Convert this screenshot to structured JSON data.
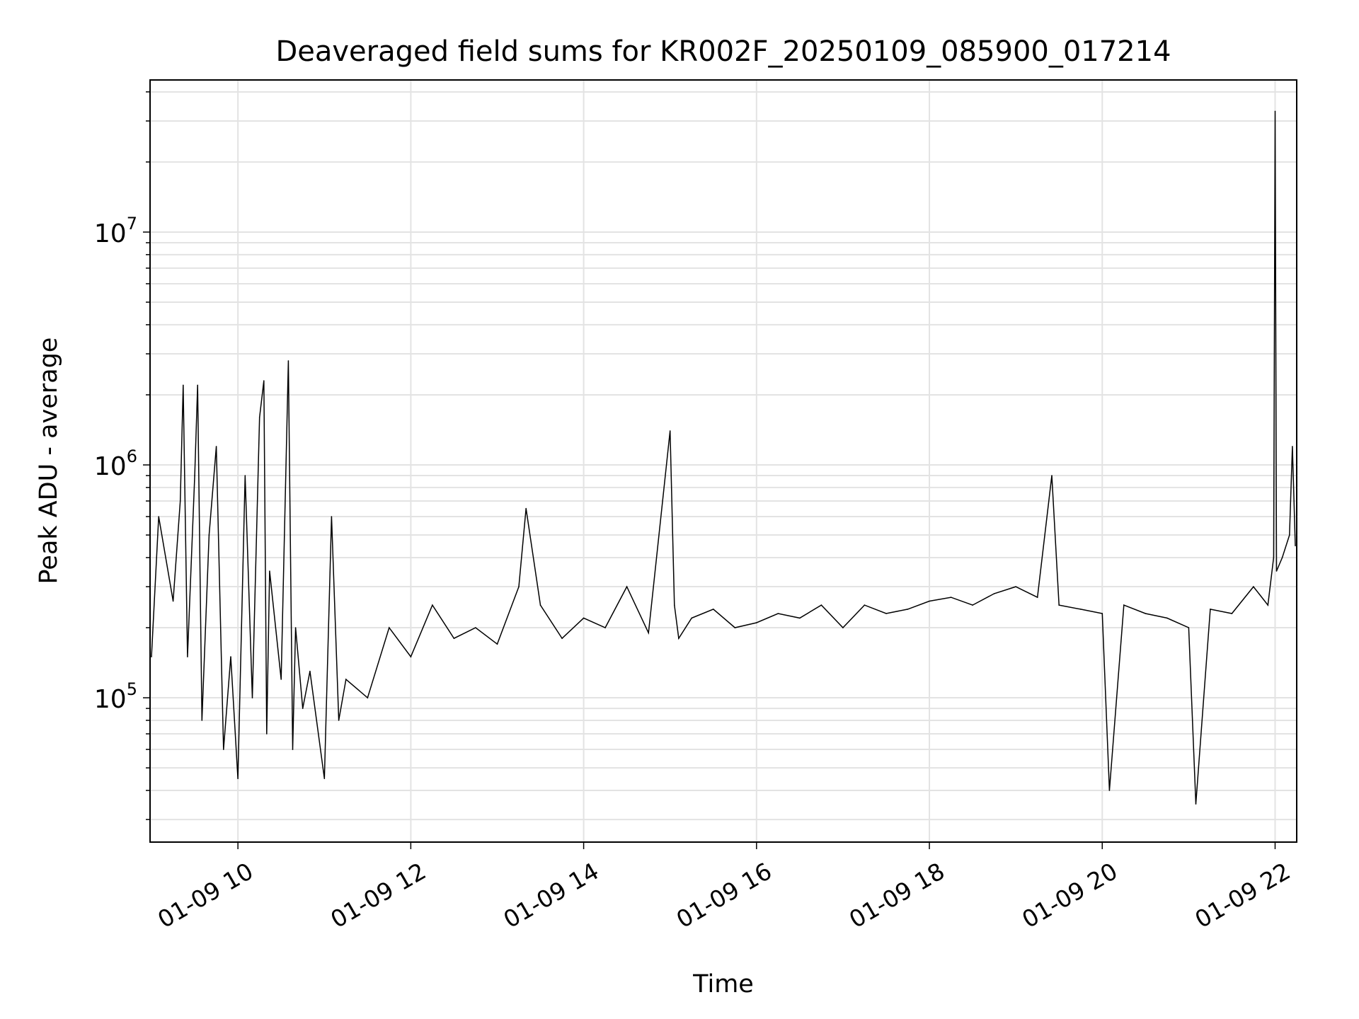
{
  "chart_data": {
    "type": "line",
    "title": "Deaveraged field sums for KR002F_20250109_085900_017214",
    "xlabel": "Time",
    "ylabel": "Peak ADU - average",
    "x_scale": "time",
    "y_scale": "log",
    "xlim": [
      "2025-01-09T08:59",
      "2025-01-09T22:15"
    ],
    "ylim": [
      24000,
      45000000
    ],
    "x_ticks": [
      {
        "label": "01-09 10",
        "value": "2025-01-09T10:00"
      },
      {
        "label": "01-09 12",
        "value": "2025-01-09T12:00"
      },
      {
        "label": "01-09 14",
        "value": "2025-01-09T14:00"
      },
      {
        "label": "01-09 16",
        "value": "2025-01-09T16:00"
      },
      {
        "label": "01-09 18",
        "value": "2025-01-09T18:00"
      },
      {
        "label": "01-09 20",
        "value": "2025-01-09T20:00"
      },
      {
        "label": "01-09 22",
        "value": "2025-01-09T22:00"
      }
    ],
    "y_ticks": [
      {
        "base": "10",
        "exp": "5",
        "value": 100000
      },
      {
        "base": "10",
        "exp": "6",
        "value": 1000000
      },
      {
        "base": "10",
        "exp": "7",
        "value": 10000000
      }
    ],
    "grid": true,
    "line_color": "#000000",
    "series": [
      {
        "x": [
          "2025-01-09T09:00",
          "2025-01-09T09:05",
          "2025-01-09T09:15",
          "2025-01-09T09:20",
          "2025-01-09T09:22",
          "2025-01-09T09:25",
          "2025-01-09T09:30",
          "2025-01-09T09:32",
          "2025-01-09T09:35",
          "2025-01-09T09:40",
          "2025-01-09T09:45",
          "2025-01-09T09:50",
          "2025-01-09T09:55",
          "2025-01-09T10:00",
          "2025-01-09T10:05",
          "2025-01-09T10:10",
          "2025-01-09T10:15",
          "2025-01-09T10:18",
          "2025-01-09T10:20",
          "2025-01-09T10:22",
          "2025-01-09T10:30",
          "2025-01-09T10:35",
          "2025-01-09T10:38",
          "2025-01-09T10:40",
          "2025-01-09T10:45",
          "2025-01-09T10:50",
          "2025-01-09T11:00",
          "2025-01-09T11:05",
          "2025-01-09T11:10",
          "2025-01-09T11:15",
          "2025-01-09T11:30",
          "2025-01-09T11:45",
          "2025-01-09T12:00",
          "2025-01-09T12:15",
          "2025-01-09T12:30",
          "2025-01-09T12:45",
          "2025-01-09T13:00",
          "2025-01-09T13:15",
          "2025-01-09T13:20",
          "2025-01-09T13:30",
          "2025-01-09T13:45",
          "2025-01-09T14:00",
          "2025-01-09T14:15",
          "2025-01-09T14:30",
          "2025-01-09T14:45",
          "2025-01-09T15:00",
          "2025-01-09T15:03",
          "2025-01-09T15:06",
          "2025-01-09T15:15",
          "2025-01-09T15:30",
          "2025-01-09T15:45",
          "2025-01-09T16:00",
          "2025-01-09T16:15",
          "2025-01-09T16:30",
          "2025-01-09T16:45",
          "2025-01-09T17:00",
          "2025-01-09T17:15",
          "2025-01-09T17:30",
          "2025-01-09T17:45",
          "2025-01-09T18:00",
          "2025-01-09T18:15",
          "2025-01-09T18:30",
          "2025-01-09T18:45",
          "2025-01-09T19:00",
          "2025-01-09T19:15",
          "2025-01-09T19:25",
          "2025-01-09T19:30",
          "2025-01-09T19:45",
          "2025-01-09T20:00",
          "2025-01-09T20:05",
          "2025-01-09T20:15",
          "2025-01-09T20:30",
          "2025-01-09T20:45",
          "2025-01-09T21:00",
          "2025-01-09T21:05",
          "2025-01-09T21:15",
          "2025-01-09T21:30",
          "2025-01-09T21:45",
          "2025-01-09T21:55",
          "2025-01-09T21:59",
          "2025-01-09T22:00",
          "2025-01-09T22:01",
          "2025-01-09T22:05",
          "2025-01-09T22:10",
          "2025-01-09T22:12",
          "2025-01-09T22:14"
        ],
        "y": [
          150000,
          600000,
          260000,
          700000,
          2200000,
          150000,
          900000,
          2200000,
          80000,
          500000,
          1200000,
          60000,
          150000,
          45000,
          900000,
          100000,
          1600000,
          2300000,
          70000,
          350000,
          120000,
          2800000,
          60000,
          200000,
          90000,
          130000,
          45000,
          600000,
          80000,
          120000,
          100000,
          200000,
          150000,
          250000,
          180000,
          200000,
          170000,
          300000,
          650000,
          250000,
          180000,
          220000,
          200000,
          300000,
          190000,
          1400000,
          250000,
          180000,
          220000,
          240000,
          200000,
          210000,
          230000,
          220000,
          250000,
          200000,
          250000,
          230000,
          240000,
          260000,
          270000,
          250000,
          280000,
          300000,
          270000,
          900000,
          250000,
          240000,
          230000,
          40000,
          250000,
          230000,
          220000,
          200000,
          35000,
          240000,
          230000,
          300000,
          250000,
          400000,
          33000000,
          350000,
          400000,
          500000,
          1200000,
          450000
        ]
      }
    ]
  }
}
